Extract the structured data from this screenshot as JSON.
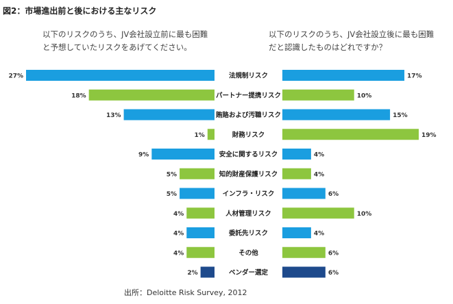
{
  "title": "図2：市場進出前と後における主なリスク",
  "left_question": "以下のリスクのうち、JV会社設立前に最も困難と予想していたリスクをあげてください。",
  "right_question": "以下のリスクのうち、JV会社設立後に最も困難だと認識したものはどれですか？",
  "source": "出所：Deloitte Risk Survey, 2012",
  "colors": {
    "blue": "#1a9ee0",
    "green": "#8dc63f",
    "navy": "#1e4a8c"
  },
  "chart_data": {
    "type": "bar",
    "categories": [
      "法規制リスク",
      "パートナー提携リスク",
      "賄賂および汚職リスク",
      "財務リスク",
      "安全に関するリスク",
      "知的財産保護リスク",
      "インフラ・リスク",
      "人材管理リスク",
      "委託先リスク",
      "その他",
      "ベンダー選定"
    ],
    "series": [
      {
        "name": "",
        "values": [
          27,
          18,
          13,
          1,
          9,
          5,
          5,
          4,
          4,
          4,
          2
        ]
      },
      {
        "name": "",
        "values": [
          17,
          10,
          15,
          19,
          4,
          4,
          6,
          10,
          4,
          6,
          6
        ]
      }
    ],
    "bar_colors": [
      "blue",
      "green",
      "blue",
      "green",
      "blue",
      "green",
      "blue",
      "green",
      "blue",
      "green",
      "navy"
    ],
    "value_suffix": "%"
  }
}
